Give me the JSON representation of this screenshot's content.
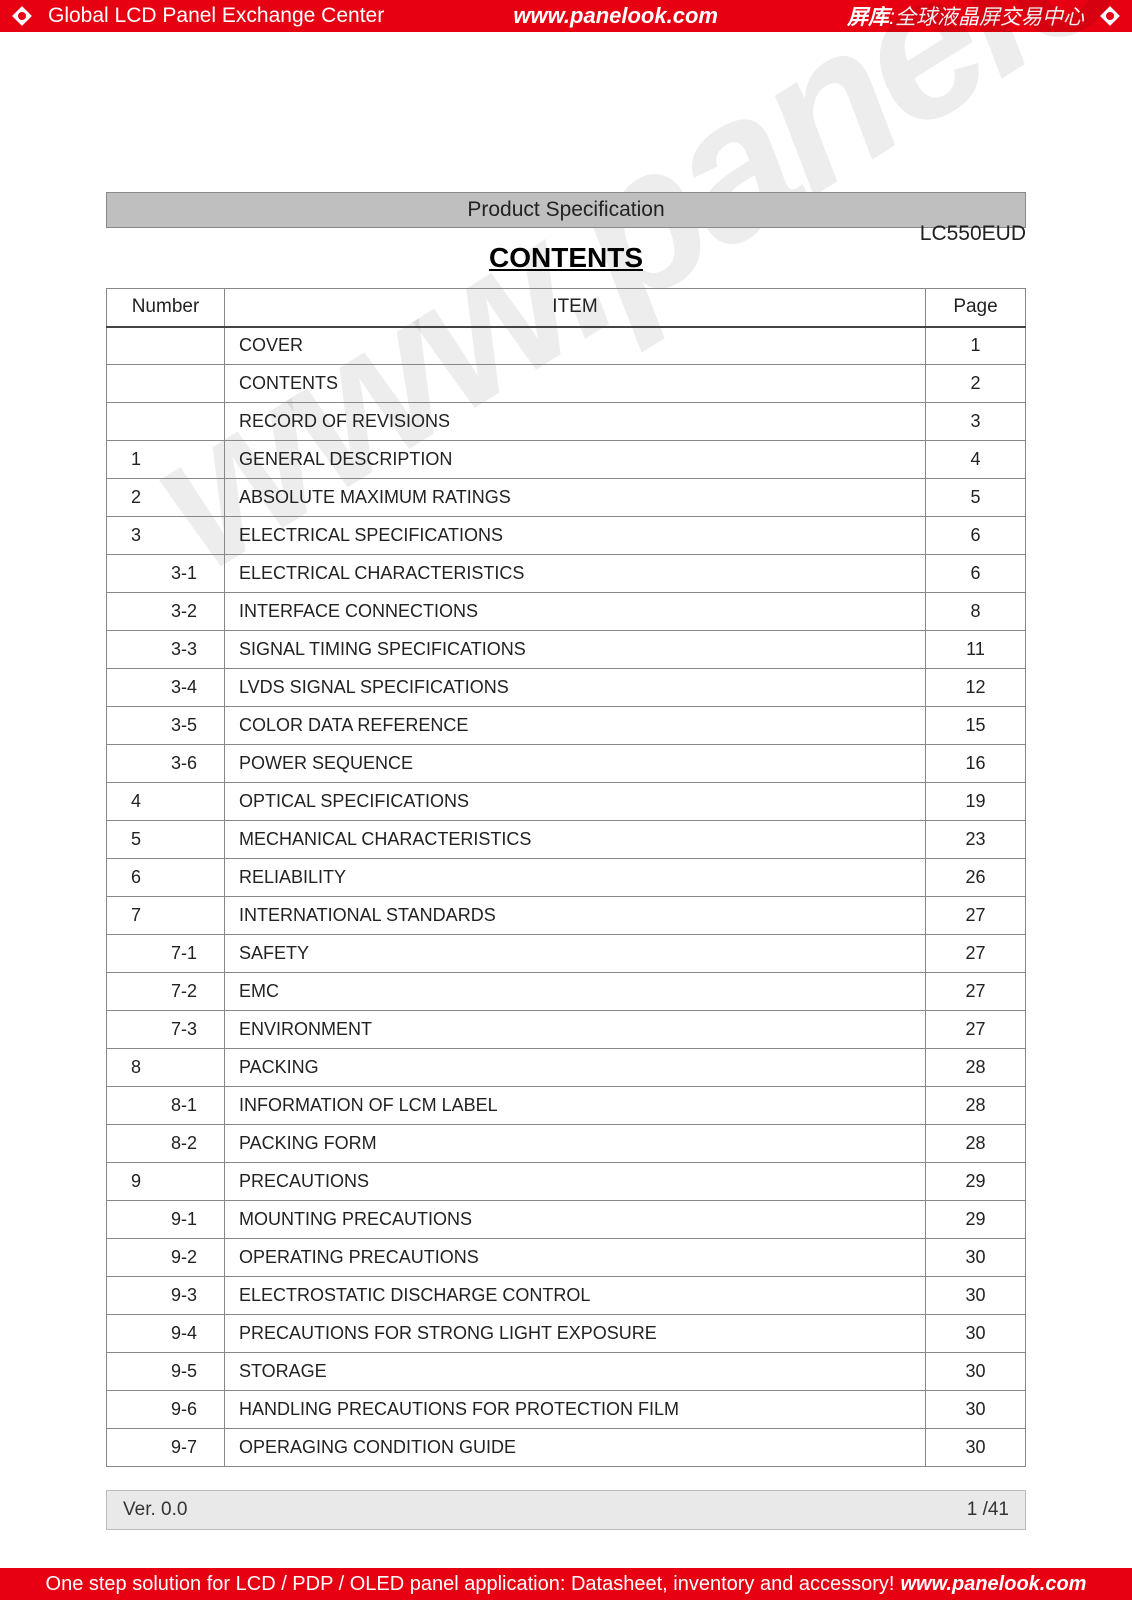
{
  "header": {
    "left": "Global LCD Panel Exchange Center",
    "center": "www.panelook.com",
    "right_bold": "屏库",
    "right_rest": ":全球液晶屏交易中心"
  },
  "footer_banner": {
    "text": "One step solution for LCD / PDP / OLED panel application: Datasheet, inventory and accessory!",
    "link": "www.panelook.com"
  },
  "model": "LC550EUD",
  "spec_label": "Product Specification",
  "title": "CONTENTS",
  "watermark": "www.panelook.com",
  "columns": {
    "number": "Number",
    "item": "ITEM",
    "page": "Page"
  },
  "rows": [
    {
      "num": "",
      "sub": false,
      "item": "COVER",
      "page": "1"
    },
    {
      "num": "",
      "sub": false,
      "item": "CONTENTS",
      "page": "2"
    },
    {
      "num": "",
      "sub": false,
      "item": "RECORD OF REVISIONS",
      "page": "3"
    },
    {
      "num": "1",
      "sub": false,
      "item": "GENERAL DESCRIPTION",
      "page": "4"
    },
    {
      "num": "2",
      "sub": false,
      "item": "ABSOLUTE MAXIMUM RATINGS",
      "page": "5"
    },
    {
      "num": "3",
      "sub": false,
      "item": "ELECTRICAL SPECIFICATIONS",
      "page": "6"
    },
    {
      "num": "3-1",
      "sub": true,
      "item": "ELECTRICAL CHARACTERISTICS",
      "page": "6"
    },
    {
      "num": "3-2",
      "sub": true,
      "item": "INTERFACE CONNECTIONS",
      "page": "8"
    },
    {
      "num": "3-3",
      "sub": true,
      "item": "SIGNAL TIMING SPECIFICATIONS",
      "page": "11"
    },
    {
      "num": "3-4",
      "sub": true,
      "item": "LVDS SIGNAL SPECIFICATIONS",
      "page": "12"
    },
    {
      "num": "3-5",
      "sub": true,
      "item": "COLOR DATA REFERENCE",
      "page": "15"
    },
    {
      "num": "3-6",
      "sub": true,
      "item": "POWER SEQUENCE",
      "page": "16"
    },
    {
      "num": "4",
      "sub": false,
      "item": "OPTICAL SPECIFICATIONS",
      "page": "19"
    },
    {
      "num": "5",
      "sub": false,
      "item": "MECHANICAL CHARACTERISTICS",
      "page": "23"
    },
    {
      "num": "6",
      "sub": false,
      "item": "RELIABILITY",
      "page": "26"
    },
    {
      "num": "7",
      "sub": false,
      "item": "INTERNATIONAL STANDARDS",
      "page": "27"
    },
    {
      "num": "7-1",
      "sub": true,
      "item": "SAFETY",
      "page": "27"
    },
    {
      "num": "7-2",
      "sub": true,
      "item": "EMC",
      "page": "27"
    },
    {
      "num": "7-3",
      "sub": true,
      "item": "ENVIRONMENT",
      "page": "27"
    },
    {
      "num": "8",
      "sub": false,
      "item": "PACKING",
      "page": "28"
    },
    {
      "num": "8-1",
      "sub": true,
      "item": "INFORMATION OF LCM LABEL",
      "page": "28"
    },
    {
      "num": "8-2",
      "sub": true,
      "item": "PACKING FORM",
      "page": "28"
    },
    {
      "num": "9",
      "sub": false,
      "item": "PRECAUTIONS",
      "page": "29"
    },
    {
      "num": "9-1",
      "sub": true,
      "item": "MOUNTING PRECAUTIONS",
      "page": "29"
    },
    {
      "num": "9-2",
      "sub": true,
      "item": "OPERATING PRECAUTIONS",
      "page": "30"
    },
    {
      "num": "9-3",
      "sub": true,
      "item": "ELECTROSTATIC DISCHARGE CONTROL",
      "page": "30"
    },
    {
      "num": "9-4",
      "sub": true,
      "item": "PRECAUTIONS FOR STRONG LIGHT EXPOSURE",
      "page": "30"
    },
    {
      "num": "9-5",
      "sub": true,
      "item": "STORAGE",
      "page": "30"
    },
    {
      "num": "9-6",
      "sub": true,
      "item": "HANDLING PRECAUTIONS FOR PROTECTION FILM",
      "page": "30"
    },
    {
      "num": "9-7",
      "sub": true,
      "item": "OPERAGING CONDITION GUIDE",
      "page": "30"
    }
  ],
  "version": "Ver. 0.0",
  "page_indicator": "1 /41",
  "colors": {
    "banner": "#e60012",
    "grey_bar": "#bfbfbf",
    "footer_grey": "#e9e9e9",
    "border": "#888888"
  }
}
